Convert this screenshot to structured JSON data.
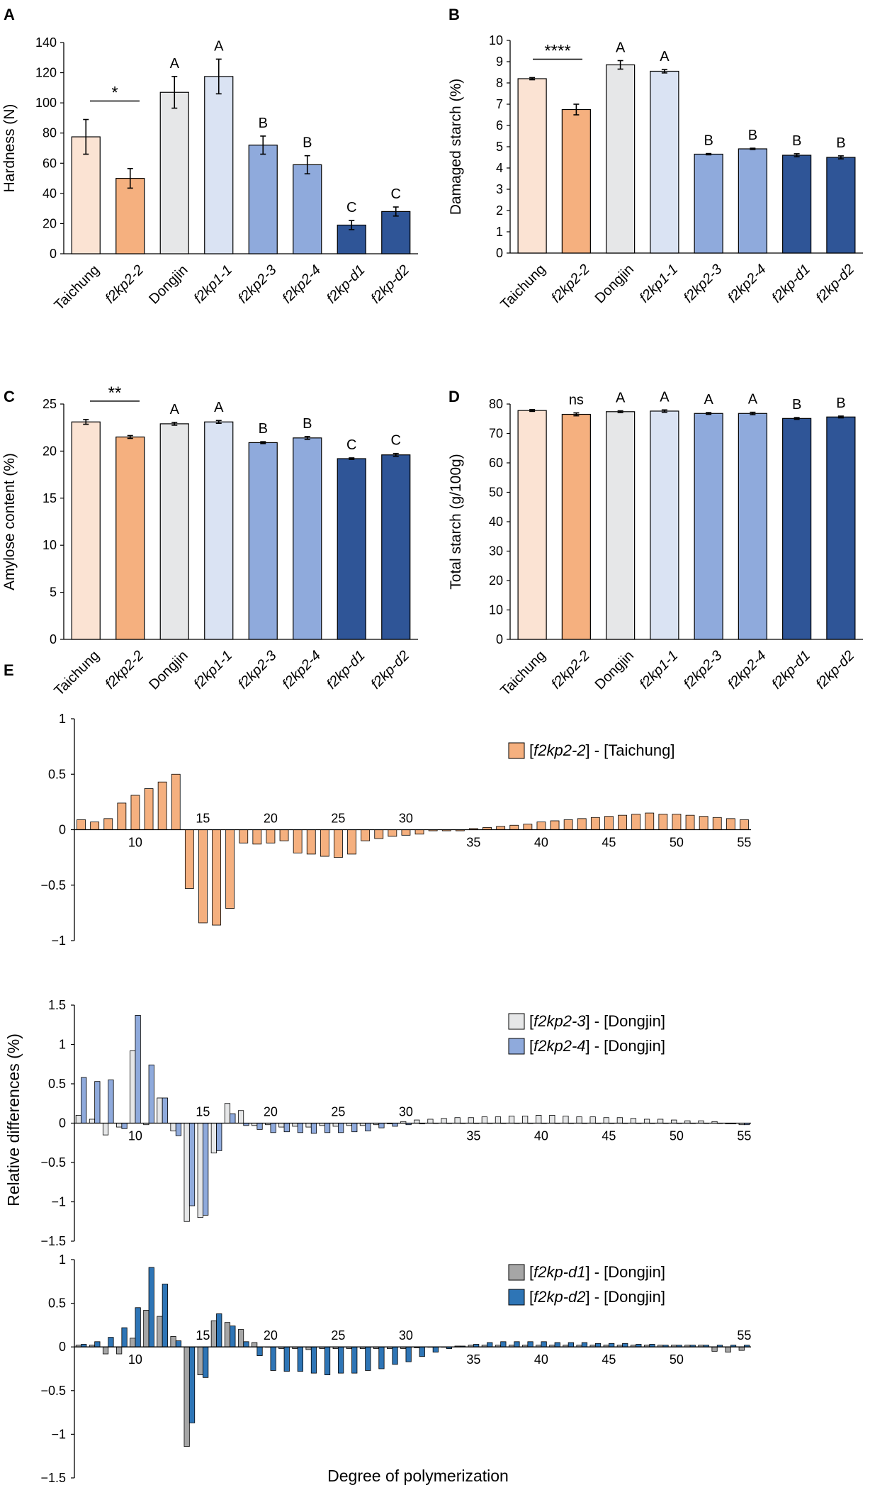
{
  "colors": {
    "Taichung": "#FBE3D3",
    "f2kp2-2": "#F5B07F",
    "Dongjin": "#E6E7E8",
    "f2kp1-1": "#DAE3F3",
    "f2kp2-3": "#8FAADC",
    "f2kp2-4": "#8FAADC",
    "f2kp-d1": "#2F5597",
    "f2kp-d2": "#2F5597",
    "E1_series": "#F5B07F",
    "E2_s1": "#E6E7E8",
    "E2_s2": "#8FAADC",
    "E3_s1": "#A6A6A6",
    "E3_s2": "#2E75B6"
  },
  "chart_data": [
    {
      "panel": "A",
      "type": "bar",
      "ylabel": "Hardness (N)",
      "ylim": [
        0,
        140
      ],
      "yticks": [
        0,
        20,
        40,
        60,
        80,
        100,
        120,
        140
      ],
      "categories": [
        "Taichung",
        "f2kp2-2",
        "Dongjin",
        "f2kp1-1",
        "f2kp2-3",
        "f2kp2-4",
        "f2kp-d1",
        "f2kp-d2"
      ],
      "italic": [
        false,
        true,
        false,
        true,
        true,
        true,
        true,
        true
      ],
      "values": [
        77.5,
        50,
        107,
        117.5,
        72,
        59,
        19,
        28
      ],
      "errors": [
        11.5,
        6.5,
        10.5,
        11.5,
        6,
        6,
        3,
        3
      ],
      "letters": [
        "",
        "",
        "A",
        "A",
        "B",
        "B",
        "C",
        "C"
      ],
      "sig": "*"
    },
    {
      "panel": "B",
      "type": "bar",
      "ylabel": "Damaged starch (%)",
      "ylim": [
        0,
        10
      ],
      "yticks": [
        0,
        1,
        2,
        3,
        4,
        5,
        6,
        7,
        8,
        9,
        10
      ],
      "categories": [
        "Taichung",
        "f2kp2-2",
        "Dongjin",
        "f2kp1-1",
        "f2kp2-3",
        "f2kp2-4",
        "f2kp-d1",
        "f2kp-d2"
      ],
      "italic": [
        false,
        true,
        false,
        true,
        true,
        true,
        true,
        true
      ],
      "values": [
        8.2,
        6.75,
        8.85,
        8.55,
        4.65,
        4.9,
        4.6,
        4.5
      ],
      "errors": [
        0.05,
        0.25,
        0.2,
        0.08,
        0.03,
        0.03,
        0.07,
        0.07
      ],
      "letters": [
        "",
        "",
        "A",
        "A",
        "B",
        "B",
        "B",
        "B"
      ],
      "sig": "****"
    },
    {
      "panel": "C",
      "type": "bar",
      "ylabel": "Amylose content (%)",
      "ylim": [
        0,
        25
      ],
      "yticks": [
        0,
        5,
        10,
        15,
        20,
        25
      ],
      "categories": [
        "Taichung",
        "f2kp2-2",
        "Dongjin",
        "f2kp1-1",
        "f2kp2-3",
        "f2kp2-4",
        "f2kp-d1",
        "f2kp-d2"
      ],
      "italic": [
        false,
        true,
        false,
        true,
        true,
        true,
        true,
        true
      ],
      "values": [
        23.1,
        21.5,
        22.9,
        23.1,
        20.9,
        21.4,
        19.2,
        19.6
      ],
      "errors": [
        0.25,
        0.15,
        0.15,
        0.15,
        0.1,
        0.15,
        0.08,
        0.15
      ],
      "letters": [
        "",
        "",
        "A",
        "A",
        "B",
        "B",
        "C",
        "C"
      ],
      "sig": "**"
    },
    {
      "panel": "D",
      "type": "bar",
      "ylabel": "Total starch (g/100g)",
      "ylim": [
        0,
        80
      ],
      "yticks": [
        0,
        10,
        20,
        30,
        40,
        50,
        60,
        70,
        80
      ],
      "categories": [
        "Taichung",
        "f2kp2-2",
        "Dongjin",
        "f2kp1-1",
        "f2kp2-3",
        "f2kp2-4",
        "f2kp-d1",
        "f2kp-d2"
      ],
      "italic": [
        false,
        true,
        false,
        true,
        true,
        true,
        true,
        true
      ],
      "values": [
        77.8,
        76.5,
        77.4,
        77.6,
        76.8,
        76.8,
        75.1,
        75.6
      ],
      "errors": [
        0.3,
        0.5,
        0.3,
        0.4,
        0.3,
        0.4,
        0.3,
        0.3
      ],
      "letters": [
        "",
        "ns",
        "A",
        "A",
        "A",
        "A",
        "B",
        "B"
      ],
      "sig": ""
    },
    {
      "panel": "E",
      "type": "bar",
      "xlabel": "Degree of polymerization",
      "ylabel": "Relative differences (%)",
      "x_start": 6,
      "x_end": 55,
      "subplots": [
        {
          "ylim": [
            -1,
            1
          ],
          "yticks": [
            1,
            0.5,
            0,
            -0.5,
            -1
          ],
          "xticks_above": [
            15,
            20,
            25,
            30
          ],
          "xticks_below": [
            10,
            35,
            40,
            45,
            50,
            55
          ],
          "series": [
            {
              "name": "[f2kp2-2] - [Taichung]",
              "name_italic": "f2kp2-2",
              "name_rest": "Taichung",
              "values": [
                0.09,
                0.07,
                0.1,
                0.24,
                0.31,
                0.37,
                0.43,
                0.5,
                -0.53,
                -0.84,
                -0.86,
                -0.71,
                -0.12,
                -0.13,
                -0.12,
                -0.1,
                -0.21,
                -0.22,
                -0.24,
                -0.25,
                -0.22,
                -0.1,
                -0.08,
                -0.06,
                -0.05,
                -0.04,
                -0.01,
                -0.01,
                -0.01,
                0.01,
                0.02,
                0.03,
                0.04,
                0.05,
                0.07,
                0.08,
                0.09,
                0.1,
                0.11,
                0.12,
                0.13,
                0.14,
                0.15,
                0.14,
                0.14,
                0.13,
                0.12,
                0.11,
                0.1,
                0.09
              ]
            }
          ]
        },
        {
          "ylim": [
            -1.5,
            1.5
          ],
          "yticks": [
            1.5,
            1,
            0.5,
            0,
            -0.5,
            -1,
            -1.5
          ],
          "xticks_above": [
            15,
            20,
            25,
            30
          ],
          "xticks_below": [
            10,
            35,
            40,
            45,
            50,
            55
          ],
          "series": [
            {
              "name": "[f2kp2-3] - [Dongjin]",
              "name_italic": "f2kp2-3",
              "name_rest": "Dongjin",
              "values": [
                0.1,
                0.05,
                -0.15,
                -0.05,
                0.92,
                -0.02,
                0.32,
                -0.1,
                -1.25,
                -1.2,
                -0.38,
                0.25,
                0.16,
                -0.03,
                -0.02,
                -0.05,
                -0.04,
                -0.05,
                -0.03,
                -0.04,
                -0.03,
                -0.03,
                -0.02,
                -0.01,
                0.02,
                0.04,
                0.05,
                0.06,
                0.07,
                0.07,
                0.08,
                0.08,
                0.09,
                0.09,
                0.1,
                0.1,
                0.09,
                0.08,
                0.08,
                0.07,
                0.07,
                0.06,
                0.05,
                0.05,
                0.04,
                0.03,
                0.03,
                0.02,
                -0.01,
                -0.02
              ]
            },
            {
              "name": "[f2kp2-4] - [Dongjin]",
              "name_italic": "f2kp2-4",
              "name_rest": "Dongjin",
              "values": [
                0.58,
                0.53,
                0.55,
                -0.07,
                1.37,
                0.74,
                0.32,
                -0.16,
                -1.05,
                -1.17,
                -0.35,
                0.12,
                -0.03,
                -0.08,
                -0.12,
                -0.11,
                -0.12,
                -0.13,
                -0.12,
                -0.12,
                -0.11,
                -0.1,
                -0.06,
                -0.04,
                -0.02,
                -0.01,
                0,
                0,
                0,
                0,
                0,
                0,
                0,
                0,
                0,
                0,
                0,
                0,
                0,
                0,
                0,
                0,
                0,
                0,
                0,
                0,
                0,
                0,
                -0.01,
                -0.02
              ]
            }
          ]
        },
        {
          "ylim": [
            -1.5,
            1
          ],
          "yticks": [
            1,
            0.5,
            0,
            -0.5,
            -1,
            -1.5
          ],
          "xticks_above": [
            15,
            20,
            25,
            30,
            55
          ],
          "xticks_below": [
            10,
            35,
            40,
            45,
            50
          ],
          "series": [
            {
              "name": "[f2kp-d1] - [Dongjin]",
              "name_italic": "f2kp-d1",
              "name_rest": "Dongjin",
              "values": [
                0.02,
                0.02,
                -0.08,
                -0.08,
                0.1,
                0.42,
                0.35,
                0.12,
                -1.14,
                -0.32,
                0.3,
                0.28,
                0.2,
                0.05,
                0,
                -0.02,
                -0.02,
                -0.03,
                -0.02,
                -0.02,
                -0.02,
                -0.02,
                -0.02,
                -0.02,
                -0.02,
                -0.01,
                0,
                0,
                0.01,
                0.02,
                0.02,
                0.02,
                0.02,
                0.02,
                0.02,
                0.02,
                0.02,
                0.02,
                0.02,
                0.02,
                0.02,
                0.02,
                0.02,
                0.02,
                0.02,
                0.02,
                0.02,
                -0.05,
                -0.06,
                -0.04
              ]
            },
            {
              "name": "[f2kp-d2] - [Dongjin]",
              "name_italic": "f2kp-d2",
              "name_rest": "Dongjin",
              "values": [
                0.03,
                0.06,
                0.11,
                0.22,
                0.45,
                0.91,
                0.72,
                0.07,
                -0.87,
                -0.35,
                0.38,
                0.24,
                0.06,
                -0.1,
                -0.27,
                -0.28,
                -0.28,
                -0.3,
                -0.32,
                -0.3,
                -0.3,
                -0.27,
                -0.25,
                -0.2,
                -0.17,
                -0.11,
                -0.06,
                -0.02,
                0.01,
                0.03,
                0.05,
                0.06,
                0.06,
                0.06,
                0.06,
                0.05,
                0.05,
                0.05,
                0.04,
                0.04,
                0.04,
                0.03,
                0.03,
                0.02,
                0.02,
                0.02,
                0.02,
                0.02,
                0.02,
                0.02
              ]
            }
          ]
        }
      ]
    }
  ]
}
